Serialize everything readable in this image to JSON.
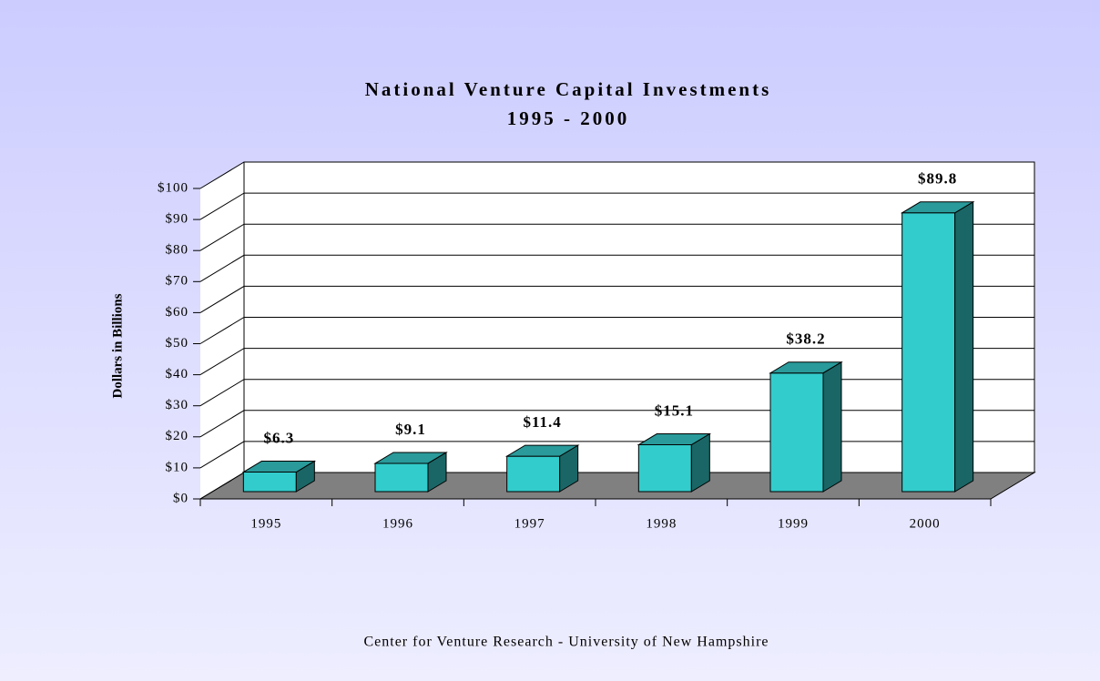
{
  "chart_data": {
    "type": "bar3d",
    "title": "National Venture Capital Investments",
    "subtitle": "1995 - 2000",
    "y_label": "Dollars in Billions",
    "source": "Center for Venture Research - University of New Hampshire",
    "categories": [
      "1995",
      "1996",
      "1997",
      "1998",
      "1999",
      "2000"
    ],
    "values": [
      6.3,
      9.1,
      11.4,
      15.1,
      38.2,
      89.8
    ],
    "value_labels": [
      "$6.3",
      "$9.1",
      "$11.4",
      "$15.1",
      "$38.2",
      "$89.8"
    ],
    "color": "#33cccc",
    "ylim": [
      0,
      100
    ],
    "yticks": [
      {
        "value": 0,
        "label": "$0"
      },
      {
        "value": 10,
        "label": "$10"
      },
      {
        "value": 20,
        "label": "$20"
      },
      {
        "value": 30,
        "label": "$30"
      },
      {
        "value": 40,
        "label": "$40"
      },
      {
        "value": 50,
        "label": "$50"
      },
      {
        "value": 60,
        "label": "$60"
      },
      {
        "value": 70,
        "label": "$70"
      },
      {
        "value": 80,
        "label": "$80"
      },
      {
        "value": 90,
        "label": "$90"
      },
      {
        "value": 100,
        "label": "$100"
      }
    ],
    "grid": true
  }
}
